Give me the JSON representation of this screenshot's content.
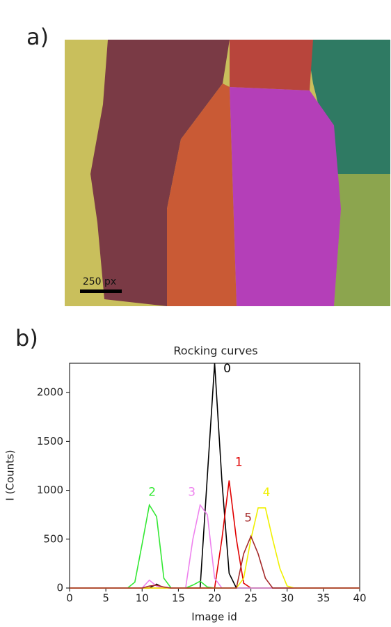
{
  "panel_a": {
    "label": "a)",
    "scale_bar": "250 px"
  },
  "panel_b": {
    "label": "b)"
  },
  "chart_data": {
    "type": "line",
    "title": "Rocking curves",
    "x_label": "Image id",
    "y_label": "I (Counts)",
    "x": [
      0,
      1,
      2,
      3,
      4,
      5,
      6,
      7,
      8,
      9,
      10,
      11,
      12,
      13,
      14,
      15,
      16,
      17,
      18,
      19,
      20,
      21,
      22,
      23,
      24,
      25,
      26,
      27,
      28,
      29,
      30,
      31,
      32,
      33,
      34,
      35,
      36,
      37,
      38,
      39,
      40
    ],
    "xlim": [
      0,
      40
    ],
    "xticks": [
      0,
      5,
      10,
      15,
      20,
      25,
      30,
      35,
      40
    ],
    "ylim": [
      0,
      2300
    ],
    "yticks": [
      0,
      500,
      1000,
      1500,
      2000
    ],
    "series": [
      {
        "name": "0",
        "color": "#000000",
        "values": [
          0,
          0,
          0,
          0,
          0,
          0,
          0,
          0,
          0,
          0,
          0,
          0,
          40,
          0,
          0,
          0,
          0,
          0,
          0,
          1150,
          2300,
          1100,
          150,
          0,
          0,
          0,
          0,
          0,
          0,
          0,
          0,
          0,
          0,
          0,
          0,
          0,
          0,
          0,
          0,
          0,
          0
        ]
      },
      {
        "name": "1",
        "color": "#e00000",
        "values": [
          0,
          0,
          0,
          0,
          0,
          0,
          0,
          0,
          0,
          0,
          0,
          0,
          0,
          0,
          0,
          0,
          0,
          0,
          0,
          0,
          0,
          500,
          1100,
          500,
          50,
          0,
          0,
          0,
          0,
          0,
          0,
          0,
          0,
          0,
          0,
          0,
          0,
          0,
          0,
          0,
          0
        ]
      },
      {
        "name": "2",
        "color": "#33e833",
        "values": [
          0,
          0,
          0,
          0,
          0,
          0,
          0,
          0,
          0,
          60,
          450,
          850,
          730,
          100,
          0,
          0,
          0,
          30,
          70,
          10,
          0,
          0,
          0,
          0,
          0,
          0,
          0,
          0,
          0,
          0,
          0,
          0,
          0,
          0,
          0,
          0,
          0,
          0,
          0,
          0,
          0
        ]
      },
      {
        "name": "3",
        "color": "#ee82ee",
        "values": [
          0,
          0,
          0,
          0,
          0,
          0,
          0,
          0,
          0,
          0,
          0,
          80,
          20,
          0,
          0,
          0,
          0,
          500,
          850,
          750,
          100,
          0,
          0,
          0,
          0,
          0,
          0,
          0,
          0,
          0,
          0,
          0,
          0,
          0,
          0,
          0,
          0,
          0,
          0,
          0,
          0
        ]
      },
      {
        "name": "4",
        "color": "#f0f000",
        "values": [
          0,
          0,
          0,
          0,
          0,
          0,
          0,
          0,
          0,
          0,
          0,
          0,
          0,
          0,
          0,
          0,
          0,
          0,
          0,
          0,
          0,
          0,
          0,
          0,
          100,
          500,
          820,
          820,
          500,
          200,
          20,
          0,
          0,
          0,
          0,
          0,
          0,
          0,
          0,
          0,
          0
        ]
      },
      {
        "name": "5",
        "color": "#a52a2a",
        "values": [
          0,
          0,
          0,
          0,
          0,
          0,
          0,
          0,
          0,
          0,
          0,
          20,
          30,
          10,
          0,
          0,
          0,
          0,
          0,
          0,
          0,
          0,
          0,
          0,
          350,
          530,
          350,
          100,
          0,
          0,
          0,
          0,
          0,
          0,
          0,
          0,
          0,
          0,
          0,
          0,
          0
        ]
      }
    ]
  }
}
